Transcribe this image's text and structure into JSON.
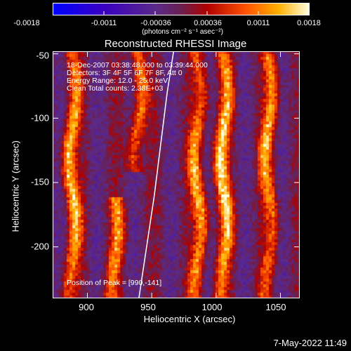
{
  "colorbar": {
    "ticks": [
      "-0.0018",
      "-0.0011",
      "-0.00036",
      "0.00036",
      "0.0011",
      "0.0018"
    ],
    "unit": "(photons cm⁻² s⁻¹ asec⁻²)",
    "range": [
      -0.0018,
      0.0018
    ]
  },
  "info_lines": [
    "18-Dec-2007 03:38:48.000 to 03:39:44.000",
    "Detectors: 3F 4F 5F 6F 7F 8F, Att 0",
    "Energy Range: 12.0 - 25.0 keV",
    "Clean    Total counts: 2.38E+03"
  ],
  "peak_label": "Position of Peak = [990,-141]",
  "footer_date": "7-May-2022 11:49",
  "chart_data": {
    "type": "heatmap",
    "title": "Reconstructed RHESSI Image",
    "xlabel": "Heliocentric X (arcsec)",
    "ylabel": "Heliocentric Y (arcsec)",
    "xlim": [
      873,
      1065
    ],
    "ylim": [
      -240,
      -48
    ],
    "x_ticks": [
      "900",
      "950",
      "1000",
      "1050"
    ],
    "x_tick_values": [
      900,
      950,
      1000,
      1050
    ],
    "y_ticks": [
      "-50",
      "-100",
      "-150",
      "-200"
    ],
    "y_tick_values": [
      -50,
      -100,
      -150,
      -200
    ],
    "peak_position": [
      990,
      -141
    ],
    "limb_curve": [
      [
        967,
        -48
      ],
      [
        962,
        -80
      ],
      [
        957,
        -120
      ],
      [
        952,
        -160
      ],
      [
        946,
        -200
      ],
      [
        940,
        -240
      ]
    ],
    "bright_ridges": [
      {
        "x_center": 887,
        "y_range": [
          -240,
          -48
        ],
        "peak_y": -145,
        "amplitude": 0.0017
      },
      {
        "x_center": 938,
        "y_range": [
          -140,
          -48
        ],
        "peak_y": -80,
        "amplitude": 0.0014
      },
      {
        "x_center": 920,
        "y_range": [
          -240,
          -160
        ],
        "peak_y": -185,
        "amplitude": 0.0013
      },
      {
        "x_center": 985,
        "y_range": [
          -240,
          -48
        ],
        "peak_y": -160,
        "amplitude": 0.0016
      },
      {
        "x_center": 1005,
        "y_range": [
          -240,
          -48
        ],
        "peak_y": -141,
        "amplitude": 0.0018
      },
      {
        "x_center": 1040,
        "y_range": [
          -240,
          -48
        ],
        "peak_y": -110,
        "amplitude": 0.0015
      }
    ]
  }
}
